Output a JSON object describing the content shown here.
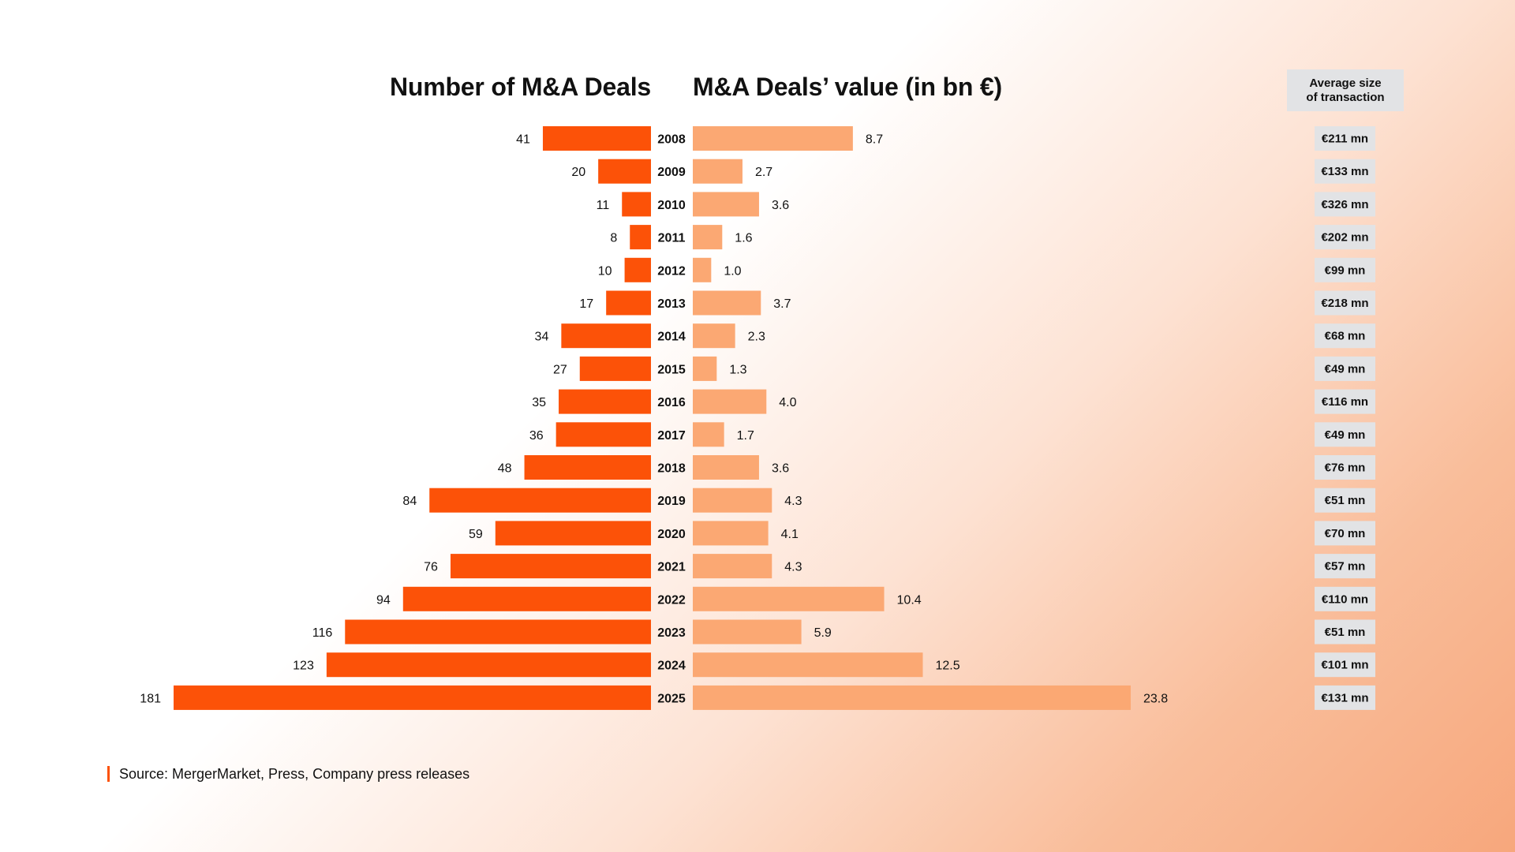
{
  "chart_data": {
    "type": "bar",
    "left_title": "Number of M&A Deals",
    "right_title": "M&A Deals’ value (in bn €)",
    "avg_header": [
      "Average size",
      "of transaction"
    ],
    "categories": [
      "2008",
      "2009",
      "2010",
      "2011",
      "2012",
      "2013",
      "2014",
      "2015",
      "2016",
      "2017",
      "2018",
      "2019",
      "2020",
      "2021",
      "2022",
      "2023",
      "2024",
      "2025"
    ],
    "series": [
      {
        "name": "Number of M&A Deals",
        "values": [
          41,
          20,
          11,
          8,
          10,
          17,
          34,
          27,
          35,
          36,
          48,
          84,
          59,
          76,
          94,
          116,
          123,
          181
        ]
      },
      {
        "name": "M&A Deals’ value (in bn €)",
        "values": [
          8.7,
          2.7,
          3.6,
          1.6,
          1.0,
          3.7,
          2.3,
          1.3,
          4.0,
          1.7,
          3.6,
          4.3,
          4.1,
          4.3,
          10.4,
          5.9,
          12.5,
          23.8
        ]
      }
    ],
    "value_labels": [
      "8.7",
      "2.7",
      "3.6",
      "1.6",
      "1.0",
      "3.7",
      "2.3",
      "1.3",
      "4.0",
      "1.7",
      "3.6",
      "4.3",
      "4.1",
      "4.3",
      "10.4",
      "5.9",
      "12.5",
      "23.8"
    ],
    "avg_size": [
      "€211 mn",
      "€133 mn",
      "€326 mn",
      "€202 mn",
      "€99 mn",
      "€218 mn",
      "€68 mn",
      "€49 mn",
      "€116 mn",
      "€49 mn",
      "€76 mn",
      "€51 mn",
      "€70 mn",
      "€57 mn",
      "€110 mn",
      "€51 mn",
      "€101 mn",
      "€131 mn"
    ],
    "colors": {
      "count": "#fc5208",
      "value": "#fba873",
      "avg_box": "#e2e3e5"
    },
    "legend": "none",
    "grid": false
  },
  "source": "Source: MergerMarket, Press, Company press releases"
}
